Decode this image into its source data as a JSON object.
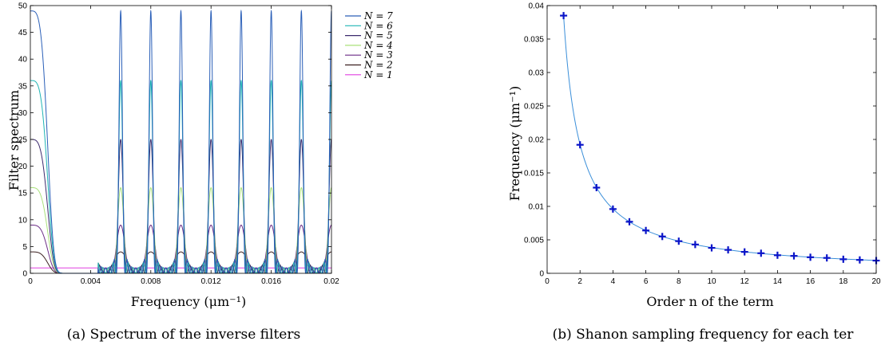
{
  "chart_data": [
    {
      "type": "line",
      "xlabel": "Frequency (μm⁻¹)",
      "ylabel": "Filter spectrum",
      "caption": "(a) Spectrum of the inverse filters",
      "xlim": [
        0,
        0.02
      ],
      "ylim": [
        0,
        50
      ],
      "xticks": [
        "0",
        "0.004",
        "0.008",
        "0.012",
        "0.016",
        "0.02"
      ],
      "yticks": [
        "0",
        "5",
        "10",
        "15",
        "20",
        "25",
        "30",
        "35",
        "40",
        "45",
        "50"
      ],
      "legend_position": "top-right",
      "period": 0.002,
      "series": [
        {
          "name": "N = 7",
          "N": 7,
          "peak": 49,
          "color": "#2a5fb8"
        },
        {
          "name": "N = 6",
          "N": 6,
          "peak": 36,
          "color": "#1fb5b5"
        },
        {
          "name": "N = 5",
          "N": 5,
          "peak": 25,
          "color": "#3c2a6e"
        },
        {
          "name": "N = 4",
          "N": 4,
          "peak": 16,
          "color": "#a8e07a"
        },
        {
          "name": "N = 3",
          "N": 3,
          "peak": 9,
          "color": "#6a2a85"
        },
        {
          "name": "N = 2",
          "N": 2,
          "peak": 4,
          "color": "#3a1f1f"
        },
        {
          "name": "N = 1",
          "N": 1,
          "peak": 1,
          "color": "#e040e0"
        }
      ]
    },
    {
      "type": "line",
      "xlabel": "Order n of the term",
      "ylabel": "Frequency (μm⁻¹)",
      "caption": "(b) Shanon sampling frequency for each ter",
      "xlim": [
        0,
        20
      ],
      "ylim": [
        0,
        0.04
      ],
      "xticks": [
        "0",
        "2",
        "4",
        "6",
        "8",
        "10",
        "12",
        "14",
        "16",
        "18",
        "20"
      ],
      "yticks": [
        "0",
        "0.005",
        "0.01",
        "0.015",
        "0.02",
        "0.025",
        "0.03",
        "0.035",
        "0.04"
      ],
      "x": [
        1,
        2,
        3,
        4,
        5,
        6,
        7,
        8,
        9,
        10,
        11,
        12,
        13,
        14,
        15,
        16,
        17,
        18,
        19,
        20
      ],
      "y": [
        0.0385,
        0.0192,
        0.0128,
        0.0096,
        0.0077,
        0.0064,
        0.0055,
        0.0048,
        0.0043,
        0.0038,
        0.0035,
        0.0032,
        0.003,
        0.0027,
        0.0026,
        0.0024,
        0.0023,
        0.0021,
        0.002,
        0.0019
      ],
      "line_color": "#3b8fd9",
      "marker_color": "#0a14c8",
      "marker": "+"
    }
  ]
}
